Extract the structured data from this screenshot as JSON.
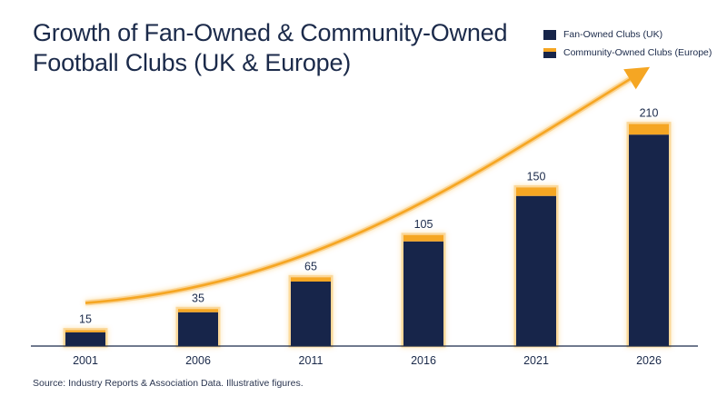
{
  "title": "Growth of Fan-Owned & Community-Owned Football Clubs (UK & Europe)",
  "source": "Source: Industry Reports & Association Data. Illustrative figures.",
  "colors": {
    "navy": "#17254a",
    "accent": "#f5a623",
    "text": "#1b2a4a"
  },
  "chart_data": {
    "type": "bar",
    "title": "Growth of Fan-Owned & Community-Owned Football Clubs (UK & Europe)",
    "categories": [
      "2001",
      "2006",
      "2011",
      "2016",
      "2021",
      "2026"
    ],
    "data_labels": [
      "15",
      "35",
      "65",
      "105",
      "150",
      "210"
    ],
    "series": [
      {
        "name": "Fan-Owned Clubs (UK)",
        "values": [
          13,
          32,
          61,
          99,
          142,
          200
        ]
      },
      {
        "name": "Community-Owned Clubs (Europe)",
        "values": [
          2,
          3,
          4,
          6,
          8,
          10
        ]
      }
    ],
    "totals": [
      15,
      35,
      65,
      105,
      150,
      210
    ],
    "stacked": true,
    "ylim": [
      0,
      250
    ],
    "grid": false,
    "legend": "top-right",
    "trend_arrow": true
  }
}
